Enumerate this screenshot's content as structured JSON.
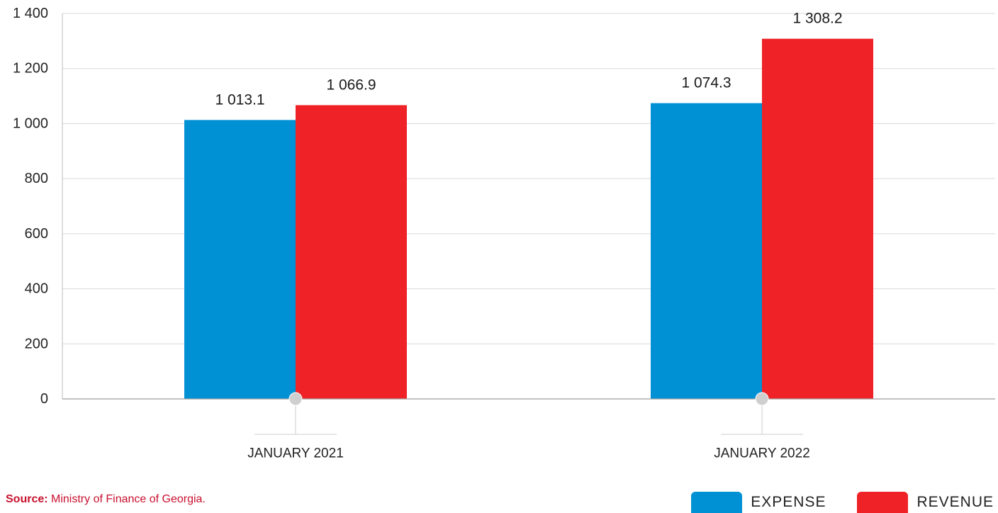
{
  "chart_data": {
    "type": "bar",
    "categories": [
      "JANUARY 2021",
      "JANUARY 2022"
    ],
    "series": [
      {
        "name": "EXPENSE",
        "color": "#0091d5",
        "values": [
          1013.1,
          1074.3
        ],
        "labels": [
          "1 013.1",
          "1 074.3"
        ]
      },
      {
        "name": "REVENUE",
        "color": "#ee2227",
        "values": [
          1066.9,
          1308.2
        ],
        "labels": [
          "1 066.9",
          "1 308.2"
        ]
      }
    ],
    "ylim": [
      0,
      1400
    ],
    "yticks": [
      0,
      200,
      400,
      600,
      800,
      1000,
      1200,
      1400
    ],
    "ytick_labels": [
      "0",
      "200",
      "400",
      "600",
      "800",
      "1 000",
      "1 200",
      "1 400"
    ],
    "grid": true,
    "legend_position": "bottom-right"
  },
  "source": {
    "prefix": "Source:",
    "text": " Ministry of Finance of Georgia.",
    "color": "#c8102e"
  },
  "legend": {
    "items": [
      {
        "label": "EXPENSE",
        "color": "#0091d5"
      },
      {
        "label": "REVENUE",
        "color": "#ee2227"
      }
    ]
  }
}
